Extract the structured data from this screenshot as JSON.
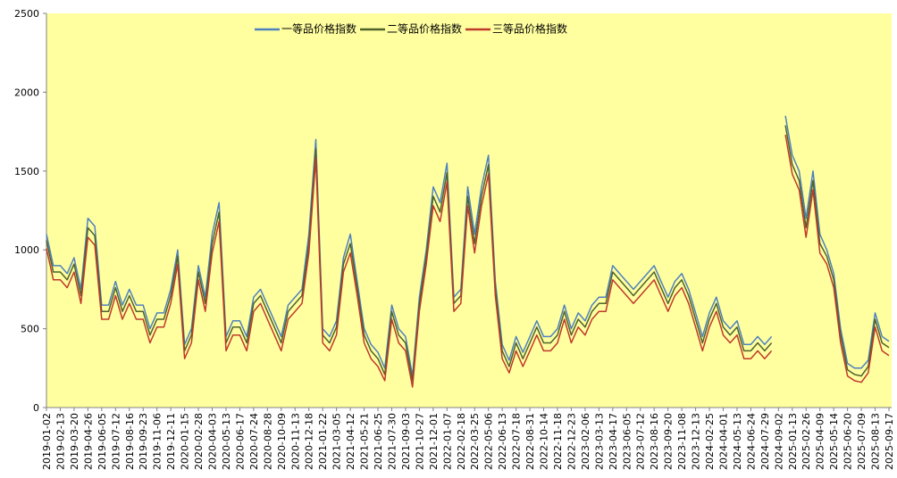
{
  "chart_data": {
    "type": "line",
    "categories": [
      "2019-01-02",
      null,
      "2019-02-13",
      null,
      "2019-03-20",
      null,
      "2019-04-26",
      null,
      "2019-06-05",
      null,
      "2019-07-12",
      null,
      "2019-08-16",
      null,
      "2019-09-23",
      null,
      "2019-11-06",
      null,
      "2019-12-11",
      null,
      "2020-01-15",
      null,
      "2020-02-28",
      null,
      "2020-04-03",
      null,
      "2020-05-13",
      null,
      "2020-06-17",
      null,
      "2020-07-24",
      null,
      "2020-08-28",
      null,
      "2020-10-09",
      null,
      "2020-11-13",
      null,
      "2020-12-18",
      null,
      "2021-01-22",
      null,
      "2021-03-05",
      null,
      "2021-04-12",
      null,
      "2021-05-21",
      null,
      "2021-06-25",
      null,
      "2021-07-30",
      null,
      "2021-09-03",
      null,
      "2021-10-27",
      null,
      "2021-12-01",
      null,
      "2022-01-07",
      null,
      "2022-02-18",
      null,
      "2022-03-25",
      null,
      "2022-05-06",
      null,
      "2022-06-13",
      null,
      "2022-07-18",
      null,
      "2022-08-31",
      null,
      "2022-10-14",
      null,
      "2022-11-18",
      null,
      "2022-12-23",
      null,
      "2023-02-06",
      null,
      "2023-03-13",
      null,
      "2023-04-17",
      null,
      "2023-06-05",
      null,
      "2023-07-12",
      null,
      "2023-08-16",
      null,
      "2023-09-20",
      null,
      "2023-11-08",
      null,
      "2023-12-13",
      null,
      "2024-02-25",
      null,
      "2024-04-01",
      null,
      "2024-05-13",
      null,
      "2024-06-24",
      null,
      "2024-07-29",
      null,
      "2024-09-02",
      null,
      "2025-01-13",
      null,
      "2025-02-26",
      null,
      "2025-04-09",
      null,
      "2025-05-14",
      null,
      "2025-06-20",
      null,
      "2025-07-09",
      null,
      "2025-08-13",
      null,
      "2025-09-17"
    ],
    "series": [
      {
        "name": "一等品价格指数",
        "color": "#4f81bd",
        "values": [
          1100,
          900,
          900,
          850,
          950,
          750,
          1200,
          1150,
          650,
          650,
          800,
          650,
          750,
          650,
          650,
          500,
          600,
          600,
          750,
          1000,
          400,
          500,
          900,
          700,
          1100,
          1300,
          450,
          550,
          550,
          450,
          700,
          750,
          650,
          550,
          450,
          650,
          700,
          750,
          1100,
          1700,
          500,
          450,
          550,
          950,
          1100,
          800,
          500,
          400,
          350,
          250,
          650,
          500,
          450,
          200,
          700,
          1000,
          1400,
          1300,
          1550,
          700,
          750,
          1400,
          1100,
          1400,
          1600,
          800,
          400,
          300,
          450,
          350,
          450,
          550,
          450,
          450,
          500,
          650,
          500,
          600,
          550,
          650,
          700,
          700,
          900,
          850,
          800,
          750,
          800,
          850,
          900,
          800,
          700,
          800,
          850,
          750,
          600,
          450,
          600,
          700,
          550,
          500,
          550,
          400,
          400,
          450,
          400,
          450,
          null,
          1850,
          1600,
          1500,
          1200,
          1500,
          1100,
          1000,
          850,
          500,
          280,
          250,
          250,
          300,
          600,
          450,
          420
        ]
      },
      {
        "name": "二等品价格指数",
        "color": "#4f6228",
        "values": [
          1060,
          860,
          860,
          810,
          910,
          710,
          1140,
          1090,
          610,
          610,
          760,
          610,
          710,
          610,
          610,
          460,
          560,
          560,
          710,
          960,
          360,
          460,
          860,
          660,
          1040,
          1240,
          410,
          510,
          510,
          410,
          660,
          710,
          610,
          510,
          410,
          610,
          660,
          710,
          1040,
          1640,
          460,
          410,
          510,
          910,
          1040,
          760,
          460,
          360,
          310,
          210,
          610,
          460,
          410,
          170,
          660,
          960,
          1340,
          1240,
          1490,
          660,
          710,
          1340,
          1040,
          1340,
          1540,
          760,
          360,
          260,
          410,
          310,
          410,
          510,
          410,
          410,
          460,
          610,
          460,
          560,
          510,
          610,
          660,
          660,
          860,
          810,
          760,
          710,
          760,
          810,
          860,
          760,
          660,
          760,
          810,
          710,
          560,
          410,
          560,
          660,
          510,
          460,
          510,
          360,
          360,
          410,
          360,
          410,
          null,
          1790,
          1540,
          1440,
          1140,
          1440,
          1040,
          960,
          810,
          460,
          240,
          210,
          200,
          260,
          560,
          410,
          380
        ]
      },
      {
        "name": "三等品价格指数",
        "color": "#c0392b",
        "values": [
          1010,
          810,
          810,
          760,
          860,
          660,
          1080,
          1030,
          560,
          560,
          710,
          560,
          660,
          560,
          560,
          410,
          510,
          510,
          660,
          910,
          310,
          410,
          810,
          610,
          980,
          1180,
          360,
          460,
          460,
          360,
          610,
          660,
          560,
          460,
          360,
          560,
          610,
          660,
          980,
          1580,
          410,
          360,
          460,
          860,
          980,
          710,
          410,
          310,
          260,
          170,
          560,
          410,
          360,
          130,
          610,
          910,
          1280,
          1180,
          1430,
          610,
          660,
          1280,
          980,
          1280,
          1480,
          710,
          310,
          220,
          360,
          260,
          360,
          460,
          360,
          360,
          410,
          560,
          410,
          510,
          460,
          560,
          610,
          610,
          810,
          760,
          710,
          660,
          710,
          760,
          810,
          710,
          610,
          710,
          760,
          660,
          510,
          360,
          510,
          610,
          460,
          410,
          460,
          310,
          310,
          360,
          310,
          360,
          null,
          1730,
          1480,
          1380,
          1080,
          1380,
          980,
          910,
          760,
          410,
          200,
          170,
          160,
          220,
          510,
          360,
          330
        ]
      }
    ],
    "ylim": [
      0,
      2500
    ],
    "yticks": [
      0,
      500,
      1000,
      1500,
      2000,
      2500
    ],
    "legend": "top"
  }
}
